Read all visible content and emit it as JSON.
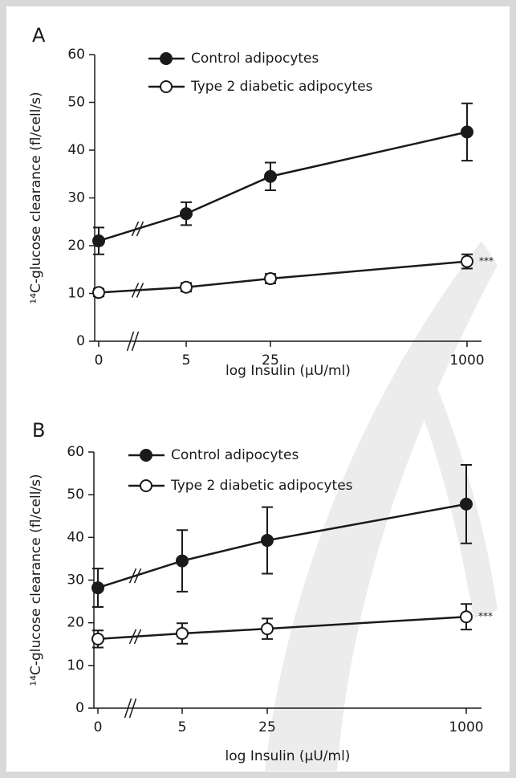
{
  "chart_data": [
    {
      "type": "line",
      "panel_label": "A",
      "y_label": "¹⁴C-glucose clearance (fl/cell/s)",
      "x_label": "log Insulin (μU/ml)",
      "categories": [
        "0",
        "5",
        "25",
        "1000"
      ],
      "series": [
        {
          "name": "Control adipocytes",
          "color": "#1a1a1a",
          "marker_fill": "#1a1a1a",
          "values": [
            21.0,
            26.7,
            34.5,
            43.8
          ],
          "errors": [
            2.8,
            2.4,
            2.9,
            6.0
          ]
        },
        {
          "name": "Type 2 diabetic adipocytes",
          "color": "#1a1a1a",
          "marker_fill": "#ffffff",
          "values": [
            10.2,
            11.3,
            13.1,
            16.7
          ],
          "errors": [
            0.8,
            0.9,
            1.0,
            1.5
          ]
        }
      ],
      "annotation": "***",
      "ylim": [
        0,
        60
      ],
      "yticks": [
        0,
        10,
        20,
        30,
        40,
        50,
        60
      ]
    },
    {
      "type": "line",
      "panel_label": "B",
      "y_label": "¹⁴C-glucose clearance (fl/cell/s)",
      "x_label": "log Insulin (μU/ml)",
      "categories": [
        "0",
        "5",
        "25",
        "1000"
      ],
      "series": [
        {
          "name": "Control adipocytes",
          "color": "#1a1a1a",
          "marker_fill": "#1a1a1a",
          "values": [
            28.2,
            34.5,
            39.3,
            47.8
          ],
          "errors": [
            4.5,
            7.2,
            7.8,
            9.2
          ]
        },
        {
          "name": "Type 2 diabetic adipocytes",
          "color": "#1a1a1a",
          "marker_fill": "#ffffff",
          "values": [
            16.2,
            17.5,
            18.6,
            21.4
          ],
          "errors": [
            2.0,
            2.4,
            2.4,
            3.0
          ]
        }
      ],
      "annotation": "***",
      "ylim": [
        0,
        60
      ],
      "yticks": [
        0,
        10,
        20,
        30,
        40,
        50,
        60
      ]
    }
  ]
}
